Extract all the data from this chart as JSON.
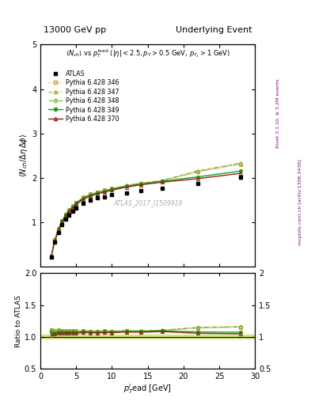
{
  "title_left": "13000 GeV pp",
  "title_right": "Underlying Event",
  "watermark": "ATLAS_2017_I1509919",
  "xlim": [
    0,
    30
  ],
  "ylim_main": [
    0,
    5
  ],
  "ylim_ratio": [
    0.5,
    2.0
  ],
  "yticks_main": [
    1,
    2,
    3,
    4,
    5
  ],
  "yticks_ratio": [
    0.5,
    1.0,
    1.5,
    2.0
  ],
  "atlas_x": [
    1.5,
    2.0,
    2.5,
    3.0,
    3.5,
    4.0,
    4.5,
    5.0,
    6.0,
    7.0,
    8.0,
    9.0,
    10.0,
    12.0,
    14.0,
    17.0,
    22.0,
    28.0
  ],
  "atlas_y": [
    0.22,
    0.55,
    0.77,
    0.95,
    1.08,
    1.17,
    1.25,
    1.33,
    1.43,
    1.5,
    1.55,
    1.58,
    1.62,
    1.67,
    1.72,
    1.76,
    1.88,
    2.01
  ],
  "atlas_yerr": [
    0.01,
    0.015,
    0.01,
    0.01,
    0.01,
    0.01,
    0.01,
    0.01,
    0.01,
    0.01,
    0.01,
    0.01,
    0.01,
    0.01,
    0.01,
    0.01,
    0.02,
    0.03
  ],
  "p346_x": [
    1.5,
    2.0,
    2.5,
    3.0,
    3.5,
    4.0,
    4.5,
    5.0,
    6.0,
    7.0,
    8.0,
    9.0,
    10.0,
    12.0,
    14.0,
    17.0,
    22.0,
    28.0
  ],
  "p346_y": [
    0.245,
    0.605,
    0.855,
    1.045,
    1.185,
    1.285,
    1.375,
    1.455,
    1.575,
    1.635,
    1.685,
    1.725,
    1.765,
    1.825,
    1.875,
    1.935,
    2.135,
    2.305
  ],
  "p347_x": [
    1.5,
    2.0,
    2.5,
    3.0,
    3.5,
    4.0,
    4.5,
    5.0,
    6.0,
    7.0,
    8.0,
    9.0,
    10.0,
    12.0,
    14.0,
    17.0,
    22.0,
    28.0
  ],
  "p347_y": [
    0.245,
    0.605,
    0.855,
    1.045,
    1.175,
    1.285,
    1.375,
    1.445,
    1.565,
    1.635,
    1.685,
    1.725,
    1.765,
    1.835,
    1.885,
    1.945,
    2.165,
    2.335
  ],
  "p348_x": [
    1.5,
    2.0,
    2.5,
    3.0,
    3.5,
    4.0,
    4.5,
    5.0,
    6.0,
    7.0,
    8.0,
    9.0,
    10.0,
    12.0,
    14.0,
    17.0,
    22.0,
    28.0
  ],
  "p348_y": [
    0.245,
    0.605,
    0.845,
    1.035,
    1.175,
    1.275,
    1.365,
    1.445,
    1.555,
    1.625,
    1.675,
    1.715,
    1.755,
    1.825,
    1.875,
    1.935,
    2.145,
    2.325
  ],
  "p349_x": [
    1.5,
    2.0,
    2.5,
    3.0,
    3.5,
    4.0,
    4.5,
    5.0,
    6.0,
    7.0,
    8.0,
    9.0,
    10.0,
    12.0,
    14.0,
    17.0,
    22.0,
    28.0
  ],
  "p349_y": [
    0.235,
    0.585,
    0.825,
    1.015,
    1.155,
    1.255,
    1.345,
    1.425,
    1.545,
    1.615,
    1.665,
    1.705,
    1.745,
    1.815,
    1.865,
    1.925,
    2.025,
    2.155
  ],
  "p370_x": [
    1.5,
    2.0,
    2.5,
    3.0,
    3.5,
    4.0,
    4.5,
    5.0,
    6.0,
    7.0,
    8.0,
    9.0,
    10.0,
    12.0,
    14.0,
    17.0,
    22.0,
    28.0
  ],
  "p370_y": [
    0.225,
    0.575,
    0.815,
    1.005,
    1.145,
    1.245,
    1.325,
    1.405,
    1.525,
    1.595,
    1.645,
    1.685,
    1.725,
    1.795,
    1.845,
    1.905,
    1.985,
    2.105
  ],
  "color_346": "#c8a040",
  "color_347": "#a8a820",
  "color_348": "#78b020",
  "color_349": "#18a018",
  "color_370": "#902020",
  "color_atlas_band": "#c8e060",
  "bg_color": "#ffffff"
}
